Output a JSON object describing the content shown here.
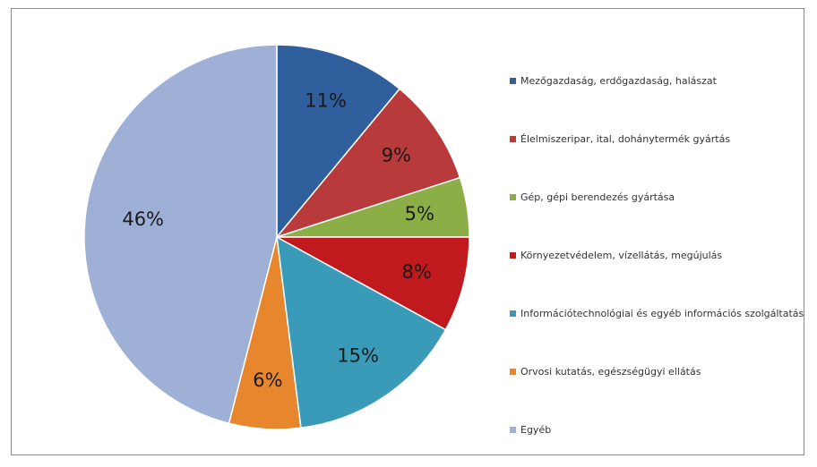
{
  "chart_data": {
    "type": "pie",
    "title": "",
    "legend_position": "right",
    "start_angle_deg": 0,
    "direction": "clockwise",
    "slices": [
      {
        "label": "Mezőgazdaság, erdőgazdaság, halászat",
        "value": 11,
        "value_label": "11%",
        "color": "#2f5f9c"
      },
      {
        "label": "Élelmiszeripar, ital, dohánytermék gyártás",
        "value": 9,
        "value_label": "9%",
        "color": "#b83a3a"
      },
      {
        "label": "Gép, gépi berendezés gyártása",
        "value": 5,
        "value_label": "5%",
        "color": "#8cae46"
      },
      {
        "label": "Környezetvédelem, vízellátás, megújulás",
        "value": 8,
        "value_label": "8%",
        "color": "#c0191e"
      },
      {
        "label": "Információtechnológiai és egyéb információs szolgáltatás",
        "value": 15,
        "value_label": "15%",
        "color": "#3a9bb8"
      },
      {
        "label": "Orvosi kutatás, egészségügyi ellátás",
        "value": 6,
        "value_label": "6%",
        "color": "#e8862e"
      },
      {
        "label": "Egyéb",
        "value": 46,
        "value_label": "46%",
        "color": "#9fb0d6"
      }
    ]
  }
}
